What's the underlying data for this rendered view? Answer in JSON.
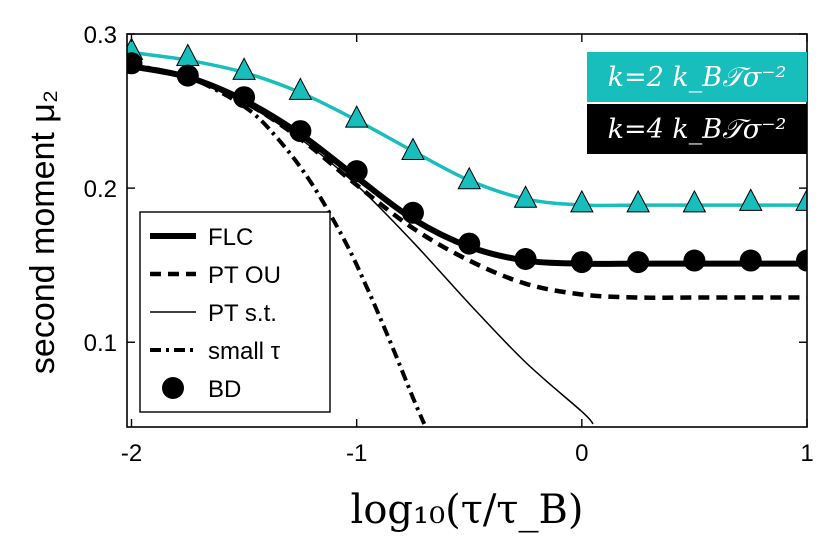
{
  "chart_data": {
    "type": "line",
    "xlabel": "log₁₀(τ/τ_B)",
    "ylabel": "second moment μ₂",
    "xlim": [
      -2.02,
      1.0
    ],
    "ylim": [
      0.045,
      0.3
    ],
    "xticks": [
      -2,
      -1,
      0,
      1
    ],
    "xtick_labels": [
      "-2",
      "-1",
      "0",
      "1"
    ],
    "yticks": [
      0.1,
      0.2,
      0.3
    ],
    "ytick_labels": [
      "0.1",
      "0.2",
      "0.3"
    ],
    "grid": false,
    "legend_placement": "lower-left",
    "annotations": [
      {
        "text": "k=2 k_B𝒯σ⁻²",
        "color": "#17bebb"
      },
      {
        "text": "k=4 k_B𝒯σ⁻²",
        "color": "#000000"
      }
    ],
    "series": [
      {
        "name": "FLC",
        "group": "k=2",
        "color": "#17bebb",
        "style": "solid-medium",
        "in_legend": false,
        "x": [
          -2.0,
          -1.75,
          -1.5,
          -1.25,
          -1.0,
          -0.75,
          -0.5,
          -0.25,
          0.0,
          0.25,
          0.5,
          0.75,
          1.0
        ],
        "y": [
          0.288,
          0.283,
          0.275,
          0.262,
          0.244,
          0.224,
          0.205,
          0.193,
          0.189,
          0.189,
          0.189,
          0.189,
          0.189
        ]
      },
      {
        "name": "FLC",
        "group": "k=4",
        "color": "#000000",
        "style": "solid-thick",
        "in_legend": true,
        "x": [
          -2.0,
          -1.75,
          -1.5,
          -1.25,
          -1.0,
          -0.75,
          -0.5,
          -0.25,
          0.0,
          0.25,
          0.5,
          0.75,
          1.0
        ],
        "y": [
          0.279,
          0.272,
          0.257,
          0.235,
          0.207,
          0.18,
          0.162,
          0.153,
          0.151,
          0.151,
          0.151,
          0.151,
          0.151
        ]
      },
      {
        "name": "PT OU",
        "group": "k=4",
        "color": "#000000",
        "style": "dashed",
        "in_legend": true,
        "x": [
          -2.0,
          -1.75,
          -1.5,
          -1.25,
          -1.0,
          -0.75,
          -0.5,
          -0.25,
          0.0,
          0.25,
          0.5,
          0.75,
          1.0
        ],
        "y": [
          0.279,
          0.272,
          0.256,
          0.232,
          0.202,
          0.174,
          0.153,
          0.138,
          0.131,
          0.129,
          0.129,
          0.129,
          0.129
        ]
      },
      {
        "name": "PT s.t.",
        "group": "k=4",
        "color": "#000000",
        "style": "solid-thin",
        "in_legend": true,
        "x": [
          -2.0,
          -1.75,
          -1.5,
          -1.25,
          -1.0,
          -0.75,
          -0.5,
          -0.25,
          0.0,
          0.05
        ],
        "y": [
          0.28,
          0.272,
          0.255,
          0.232,
          0.202,
          0.165,
          0.125,
          0.087,
          0.055,
          0.047
        ]
      },
      {
        "name": "small τ",
        "group": "k=4",
        "color": "#000000",
        "style": "dashdot",
        "in_legend": true,
        "x": [
          -2.0,
          -1.75,
          -1.5,
          -1.35,
          -1.2,
          -1.05,
          -0.95,
          -0.85,
          -0.75,
          -0.7
        ],
        "y": [
          0.28,
          0.272,
          0.253,
          0.232,
          0.203,
          0.165,
          0.134,
          0.1,
          0.064,
          0.047
        ]
      },
      {
        "name": "BD",
        "group": "k=2",
        "color": "#17bebb",
        "style": "triangle-markers",
        "in_legend": false,
        "x": [
          -2.0,
          -1.75,
          -1.5,
          -1.25,
          -1.0,
          -0.75,
          -0.5,
          -0.25,
          0.0,
          0.25,
          0.5,
          0.75,
          1.0
        ],
        "y": [
          0.289,
          0.285,
          0.276,
          0.263,
          0.245,
          0.224,
          0.205,
          0.193,
          0.19,
          0.19,
          0.19,
          0.191,
          0.191
        ]
      },
      {
        "name": "BD",
        "group": "k=4",
        "color": "#000000",
        "style": "circle-markers",
        "in_legend": true,
        "x": [
          -2.0,
          -1.75,
          -1.5,
          -1.25,
          -1.0,
          -0.75,
          -0.5,
          -0.25,
          0.0,
          0.25,
          0.5,
          0.75,
          1.0
        ],
        "y": [
          0.281,
          0.273,
          0.259,
          0.237,
          0.211,
          0.184,
          0.164,
          0.154,
          0.152,
          0.152,
          0.153,
          0.153,
          0.153
        ]
      }
    ]
  }
}
